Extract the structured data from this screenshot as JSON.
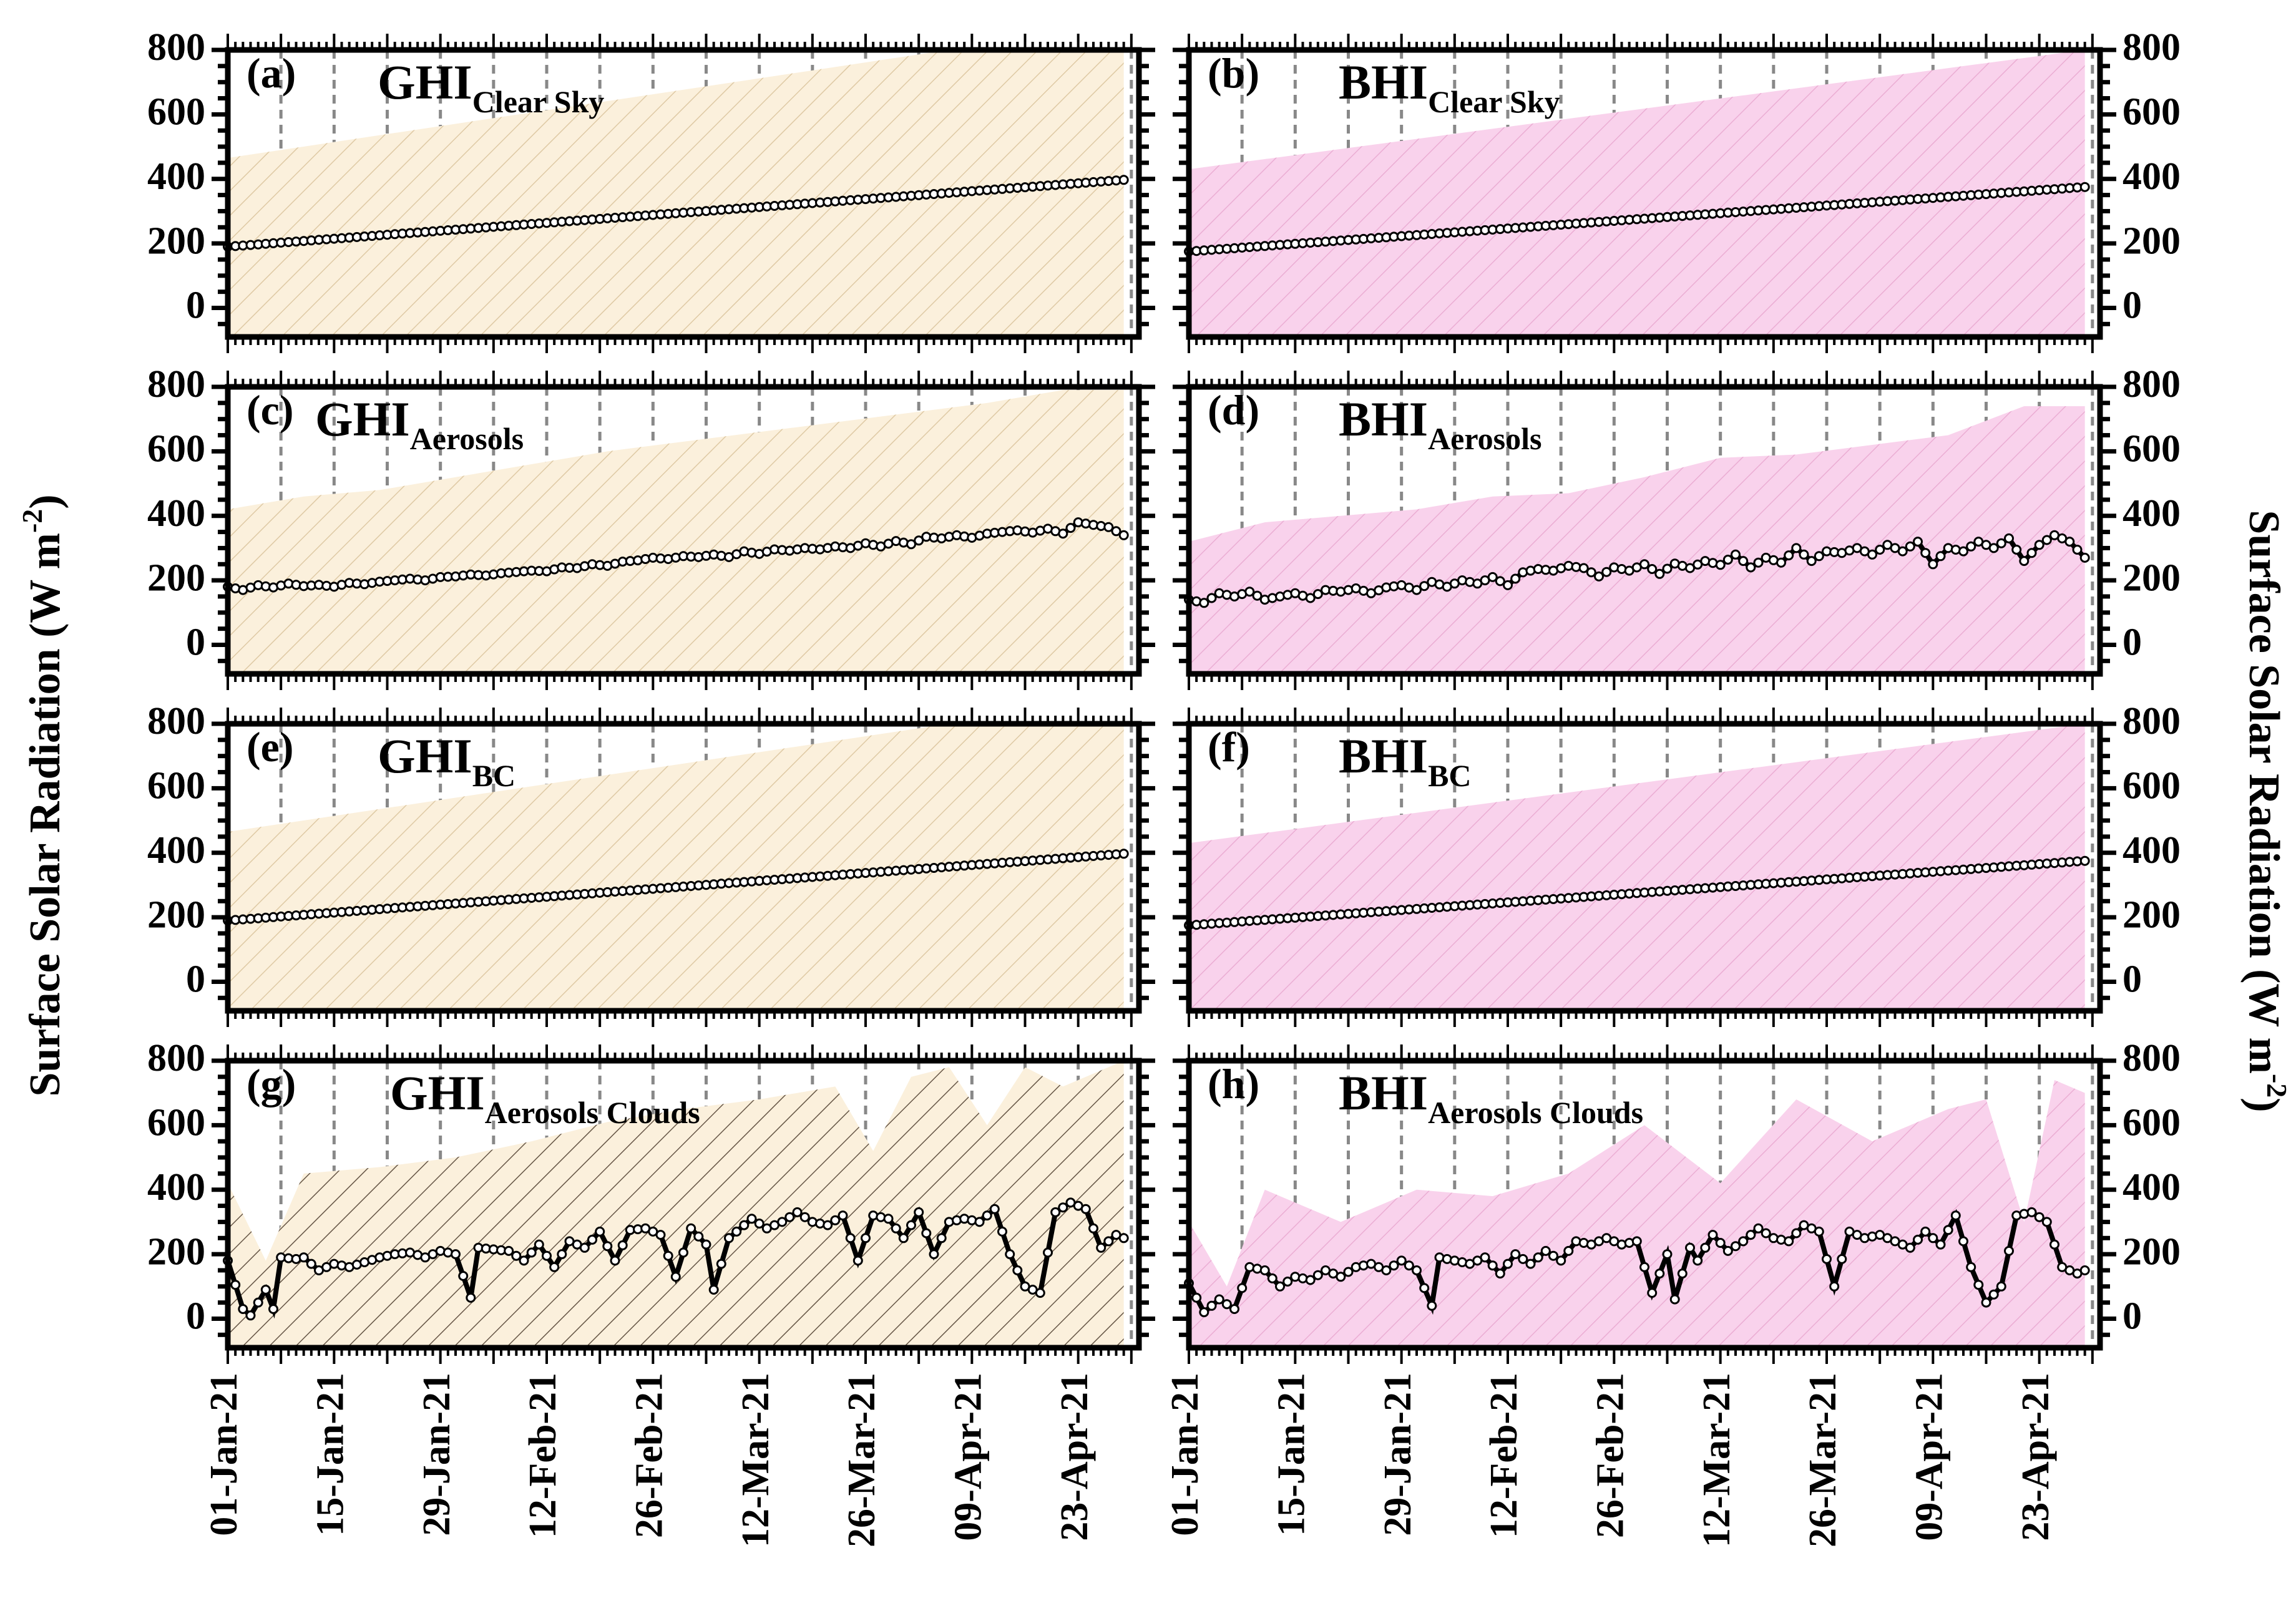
{
  "figure": {
    "y_label_left": "Surface Solar Radiation (W m",
    "y_label_right": "Surface Solar Radiation (W m",
    "y_label_sup": "-2",
    "y_label_close": ")"
  },
  "chart_data": [
    {
      "type": "area",
      "panel": "(a)",
      "title": "GHI",
      "title_sub": "Clear Sky",
      "x_ticks": [
        "01-Jan-21",
        "15-Jan-21",
        "29-Jan-21",
        "12-Feb-21",
        "26-Feb-21",
        "12-Mar-21",
        "26-Mar-21",
        "09-Apr-21",
        "23-Apr-21"
      ],
      "ylim": [
        -90,
        800
      ],
      "y_ticks": [
        0,
        200,
        400,
        600,
        800
      ],
      "fill_color": "#fbf0dc",
      "hatch_color": "#d9c29a",
      "line_color": "#000000",
      "series": [
        {
          "role": "mean",
          "x_days": [
            0,
            118
          ],
          "values": [
            190,
            397
          ]
        },
        {
          "role": "max",
          "x_days": [
            0,
            95,
            118
          ],
          "values": [
            465,
            800,
            800
          ]
        },
        {
          "role": "min",
          "x_days": [
            0,
            118
          ],
          "values": [
            -90,
            -90
          ]
        }
      ]
    },
    {
      "type": "area",
      "panel": "(b)",
      "title": "BHI",
      "title_sub": "Clear Sky",
      "x_ticks": [
        "01-Jan-21",
        "15-Jan-21",
        "29-Jan-21",
        "12-Feb-21",
        "26-Feb-21",
        "12-Mar-21",
        "26-Mar-21",
        "09-Apr-21",
        "23-Apr-21"
      ],
      "ylim": [
        -90,
        800
      ],
      "y_ticks": [
        0,
        200,
        400,
        600,
        800
      ],
      "fill_color": "#f9d2ec",
      "hatch_color": "#e8a6cf",
      "line_color": "#000000",
      "series": [
        {
          "role": "mean",
          "x_days": [
            0,
            118
          ],
          "values": [
            175,
            375
          ]
        },
        {
          "role": "max",
          "x_days": [
            0,
            118
          ],
          "values": [
            430,
            800
          ]
        },
        {
          "role": "min",
          "x_days": [
            0,
            118
          ],
          "values": [
            -90,
            -90
          ]
        }
      ]
    },
    {
      "type": "area",
      "panel": "(c)",
      "title": "GHI",
      "title_sub": "Aerosols",
      "x_ticks": [
        "01-Jan-21",
        "15-Jan-21",
        "29-Jan-21",
        "12-Feb-21",
        "26-Feb-21",
        "12-Mar-21",
        "26-Mar-21",
        "09-Apr-21",
        "23-Apr-21"
      ],
      "ylim": [
        -90,
        800
      ],
      "y_ticks": [
        0,
        200,
        400,
        600,
        800
      ],
      "fill_color": "#fbf0dc",
      "hatch_color": "#d9c29a",
      "line_color": "#000000",
      "series": [
        {
          "role": "mean",
          "x_days": [
            0,
            2,
            4,
            6,
            8,
            10,
            12,
            14,
            16,
            18,
            20,
            22,
            24,
            26,
            28,
            30,
            32,
            34,
            36,
            38,
            40,
            42,
            44,
            46,
            48,
            50,
            52,
            54,
            56,
            58,
            60,
            62,
            64,
            66,
            68,
            70,
            72,
            74,
            76,
            78,
            80,
            82,
            84,
            86,
            88,
            90,
            92,
            94,
            96,
            98,
            100,
            102,
            104,
            106,
            108,
            110,
            112,
            114,
            116,
            118
          ],
          "values": [
            180,
            170,
            185,
            178,
            190,
            182,
            186,
            180,
            192,
            188,
            196,
            200,
            205,
            200,
            210,
            212,
            218,
            215,
            222,
            226,
            230,
            228,
            240,
            238,
            250,
            245,
            258,
            262,
            270,
            266,
            275,
            272,
            280,
            272,
            290,
            282,
            296,
            292,
            300,
            296,
            305,
            300,
            315,
            305,
            322,
            312,
            335,
            330,
            340,
            332,
            345,
            350,
            355,
            348,
            360,
            345,
            380,
            372,
            365,
            340
          ]
        },
        {
          "role": "max",
          "x_days": [
            0,
            10,
            20,
            30,
            40,
            50,
            60,
            70,
            80,
            90,
            100,
            110,
            118
          ],
          "values": [
            420,
            460,
            480,
            520,
            560,
            600,
            630,
            660,
            690,
            720,
            750,
            790,
            790
          ]
        },
        {
          "role": "min",
          "x_days": [
            0,
            118
          ],
          "values": [
            -90,
            -90
          ]
        }
      ]
    },
    {
      "type": "area",
      "panel": "(d)",
      "title": "BHI",
      "title_sub": "Aerosols",
      "x_ticks": [
        "01-Jan-21",
        "15-Jan-21",
        "29-Jan-21",
        "12-Feb-21",
        "26-Feb-21",
        "12-Mar-21",
        "26-Mar-21",
        "09-Apr-21",
        "23-Apr-21"
      ],
      "ylim": [
        -90,
        800
      ],
      "y_ticks": [
        0,
        200,
        400,
        600,
        800
      ],
      "fill_color": "#f9d2ec",
      "hatch_color": "#e8a6cf",
      "line_color": "#000000",
      "series": [
        {
          "role": "mean",
          "x_days": [
            0,
            2,
            4,
            6,
            8,
            10,
            12,
            14,
            16,
            18,
            20,
            22,
            24,
            26,
            28,
            30,
            32,
            34,
            36,
            38,
            40,
            42,
            44,
            46,
            48,
            50,
            52,
            54,
            56,
            58,
            60,
            62,
            64,
            66,
            68,
            70,
            72,
            74,
            76,
            78,
            80,
            82,
            84,
            86,
            88,
            90,
            92,
            94,
            96,
            98,
            100,
            102,
            104,
            106,
            108,
            110,
            112,
            114,
            116,
            118
          ],
          "values": [
            140,
            130,
            160,
            150,
            165,
            140,
            150,
            160,
            145,
            170,
            165,
            175,
            160,
            178,
            185,
            170,
            195,
            180,
            200,
            190,
            210,
            185,
            225,
            235,
            230,
            245,
            238,
            212,
            240,
            230,
            250,
            220,
            252,
            238,
            260,
            248,
            280,
            240,
            270,
            255,
            300,
            260,
            290,
            285,
            300,
            280,
            310,
            290,
            320,
            250,
            300,
            290,
            320,
            300,
            330,
            260,
            310,
            340,
            320,
            270
          ]
        },
        {
          "role": "max",
          "x_days": [
            0,
            10,
            20,
            30,
            40,
            50,
            60,
            70,
            80,
            90,
            100,
            110,
            118
          ],
          "values": [
            320,
            380,
            400,
            420,
            460,
            470,
            520,
            580,
            590,
            620,
            650,
            740,
            740
          ]
        },
        {
          "role": "min",
          "x_days": [
            0,
            118
          ],
          "values": [
            -90,
            -90
          ]
        }
      ]
    },
    {
      "type": "area",
      "panel": "(e)",
      "title": "GHI",
      "title_sub": "BC",
      "x_ticks": [
        "01-Jan-21",
        "15-Jan-21",
        "29-Jan-21",
        "12-Feb-21",
        "26-Feb-21",
        "12-Mar-21",
        "26-Mar-21",
        "09-Apr-21",
        "23-Apr-21"
      ],
      "ylim": [
        -90,
        800
      ],
      "y_ticks": [
        0,
        200,
        400,
        600,
        800
      ],
      "fill_color": "#fbf0dc",
      "hatch_color": "#d9c29a",
      "line_color": "#000000",
      "series": [
        {
          "role": "mean",
          "x_days": [
            0,
            118
          ],
          "values": [
            190,
            397
          ]
        },
        {
          "role": "max",
          "x_days": [
            0,
            95,
            118
          ],
          "values": [
            465,
            800,
            800
          ]
        },
        {
          "role": "min",
          "x_days": [
            0,
            118
          ],
          "values": [
            -90,
            -90
          ]
        }
      ]
    },
    {
      "type": "area",
      "panel": "(f)",
      "title": "BHI",
      "title_sub": "BC",
      "x_ticks": [
        "01-Jan-21",
        "15-Jan-21",
        "29-Jan-21",
        "12-Feb-21",
        "26-Feb-21",
        "12-Mar-21",
        "26-Mar-21",
        "09-Apr-21",
        "23-Apr-21"
      ],
      "ylim": [
        -90,
        800
      ],
      "y_ticks": [
        0,
        200,
        400,
        600,
        800
      ],
      "fill_color": "#f9d2ec",
      "hatch_color": "#e8a6cf",
      "line_color": "#000000",
      "series": [
        {
          "role": "mean",
          "x_days": [
            0,
            118
          ],
          "values": [
            175,
            375
          ]
        },
        {
          "role": "max",
          "x_days": [
            0,
            118
          ],
          "values": [
            430,
            800
          ]
        },
        {
          "role": "min",
          "x_days": [
            0,
            118
          ],
          "values": [
            -90,
            -90
          ]
        }
      ]
    },
    {
      "type": "area",
      "panel": "(g)",
      "title": "GHI",
      "title_sub": "Aerosols Clouds",
      "x_ticks": [
        "01-Jan-21",
        "15-Jan-21",
        "29-Jan-21",
        "12-Feb-21",
        "26-Feb-21",
        "12-Mar-21",
        "26-Mar-21",
        "09-Apr-21",
        "23-Apr-21"
      ],
      "ylim": [
        -90,
        800
      ],
      "y_ticks": [
        0,
        200,
        400,
        600,
        800
      ],
      "fill_color": "#fbf0dc",
      "hatch_color": "#4a3a2a",
      "line_color": "#000000",
      "series": [
        {
          "role": "mean",
          "x_days": [
            0,
            2,
            3,
            5,
            6,
            7,
            9,
            10,
            12,
            14,
            16,
            18,
            20,
            22,
            24,
            26,
            28,
            30,
            32,
            33,
            35,
            37,
            39,
            41,
            43,
            45,
            47,
            49,
            51,
            53,
            55,
            57,
            59,
            61,
            63,
            64,
            66,
            67,
            69,
            71,
            73,
            75,
            77,
            79,
            81,
            83,
            85,
            87,
            89,
            91,
            93,
            95,
            97,
            99,
            101,
            103,
            105,
            107,
            109,
            111,
            113,
            115,
            117,
            118
          ],
          "values": [
            180,
            30,
            10,
            90,
            30,
            190,
            185,
            190,
            150,
            170,
            160,
            175,
            190,
            200,
            205,
            190,
            210,
            200,
            65,
            220,
            215,
            210,
            180,
            230,
            160,
            240,
            220,
            270,
            180,
            275,
            280,
            260,
            130,
            280,
            230,
            90,
            250,
            270,
            310,
            280,
            300,
            330,
            300,
            290,
            320,
            180,
            320,
            310,
            250,
            330,
            200,
            300,
            310,
            300,
            340,
            200,
            100,
            80,
            330,
            360,
            340,
            220,
            260,
            250
          ]
        },
        {
          "role": "max",
          "x_days": [
            0,
            5,
            10,
            20,
            30,
            40,
            50,
            60,
            70,
            80,
            85,
            90,
            95,
            100,
            105,
            110,
            118
          ],
          "values": [
            420,
            180,
            450,
            470,
            500,
            550,
            610,
            650,
            680,
            720,
            520,
            750,
            780,
            600,
            780,
            720,
            800
          ]
        },
        {
          "role": "min",
          "x_days": [
            0,
            118
          ],
          "values": [
            -90,
            -90
          ]
        }
      ]
    },
    {
      "type": "area",
      "panel": "(h)",
      "title": "BHI",
      "title_sub": "Aerosols Clouds",
      "x_ticks": [
        "01-Jan-21",
        "15-Jan-21",
        "29-Jan-21",
        "12-Feb-21",
        "26-Feb-21",
        "12-Mar-21",
        "26-Mar-21",
        "09-Apr-21",
        "23-Apr-21"
      ],
      "ylim": [
        -90,
        800
      ],
      "y_ticks": [
        0,
        200,
        400,
        600,
        800
      ],
      "fill_color": "#f9d2ec",
      "hatch_color": "#e8a6cf",
      "line_color": "#000000",
      "series": [
        {
          "role": "mean",
          "x_days": [
            0,
            2,
            4,
            6,
            8,
            10,
            12,
            14,
            16,
            18,
            20,
            22,
            24,
            26,
            28,
            30,
            32,
            33,
            35,
            37,
            39,
            41,
            43,
            45,
            47,
            49,
            51,
            53,
            55,
            57,
            59,
            61,
            63,
            64,
            66,
            67,
            69,
            71,
            73,
            75,
            77,
            79,
            81,
            83,
            85,
            87,
            89,
            91,
            93,
            95,
            97,
            99,
            101,
            103,
            105,
            107,
            109,
            111,
            113,
            115,
            117,
            118
          ],
          "values": [
            110,
            20,
            60,
            30,
            160,
            150,
            100,
            130,
            120,
            150,
            130,
            160,
            170,
            150,
            180,
            150,
            40,
            190,
            180,
            170,
            190,
            140,
            200,
            170,
            210,
            180,
            240,
            230,
            250,
            230,
            240,
            80,
            200,
            60,
            220,
            180,
            260,
            210,
            240,
            280,
            250,
            240,
            290,
            270,
            100,
            270,
            250,
            260,
            240,
            220,
            270,
            230,
            320,
            160,
            50,
            100,
            320,
            330,
            300,
            160,
            140,
            150
          ]
        },
        {
          "role": "max",
          "x_days": [
            0,
            5,
            10,
            20,
            30,
            40,
            50,
            60,
            70,
            80,
            90,
            100,
            105,
            110,
            114,
            118
          ],
          "values": [
            300,
            100,
            400,
            300,
            400,
            380,
            450,
            600,
            420,
            680,
            550,
            650,
            680,
            300,
            740,
            700
          ]
        },
        {
          "role": "min",
          "x_days": [
            0,
            118
          ],
          "values": [
            -90,
            -90
          ]
        }
      ]
    }
  ]
}
